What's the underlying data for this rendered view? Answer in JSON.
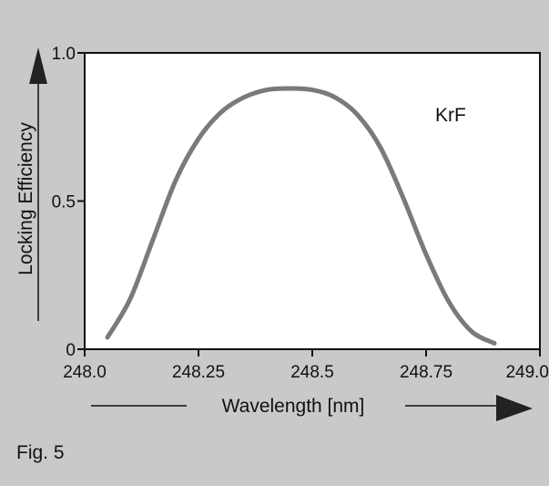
{
  "figure_label": "Fig. 5",
  "colors": {
    "curve": "#7a7a7a",
    "background": "#c9c9c9",
    "panel": "#ffffff",
    "ink": "#111111"
  },
  "chart_data": {
    "type": "line",
    "xlabel": "Wavelength [nm]",
    "ylabel": "Locking Efficiency",
    "xlim": [
      248.0,
      249.0
    ],
    "ylim": [
      0,
      1.0
    ],
    "x_tick_labels": [
      "248.0",
      "248.25",
      "248.5",
      "248.75",
      "249.0"
    ],
    "y_tick_labels": [
      "0",
      "0.5",
      "1.0"
    ],
    "annotations": [
      "KrF"
    ],
    "grid": false,
    "series": [
      {
        "x": [
          248.05,
          248.1,
          248.15,
          248.2,
          248.25,
          248.3,
          248.35,
          248.4,
          248.45,
          248.5,
          248.55,
          248.6,
          248.65,
          248.7,
          248.75,
          248.8,
          248.85,
          248.9
        ],
        "y": [
          0.04,
          0.17,
          0.37,
          0.57,
          0.71,
          0.8,
          0.85,
          0.875,
          0.88,
          0.875,
          0.85,
          0.79,
          0.68,
          0.51,
          0.32,
          0.16,
          0.06,
          0.02
        ]
      }
    ]
  }
}
